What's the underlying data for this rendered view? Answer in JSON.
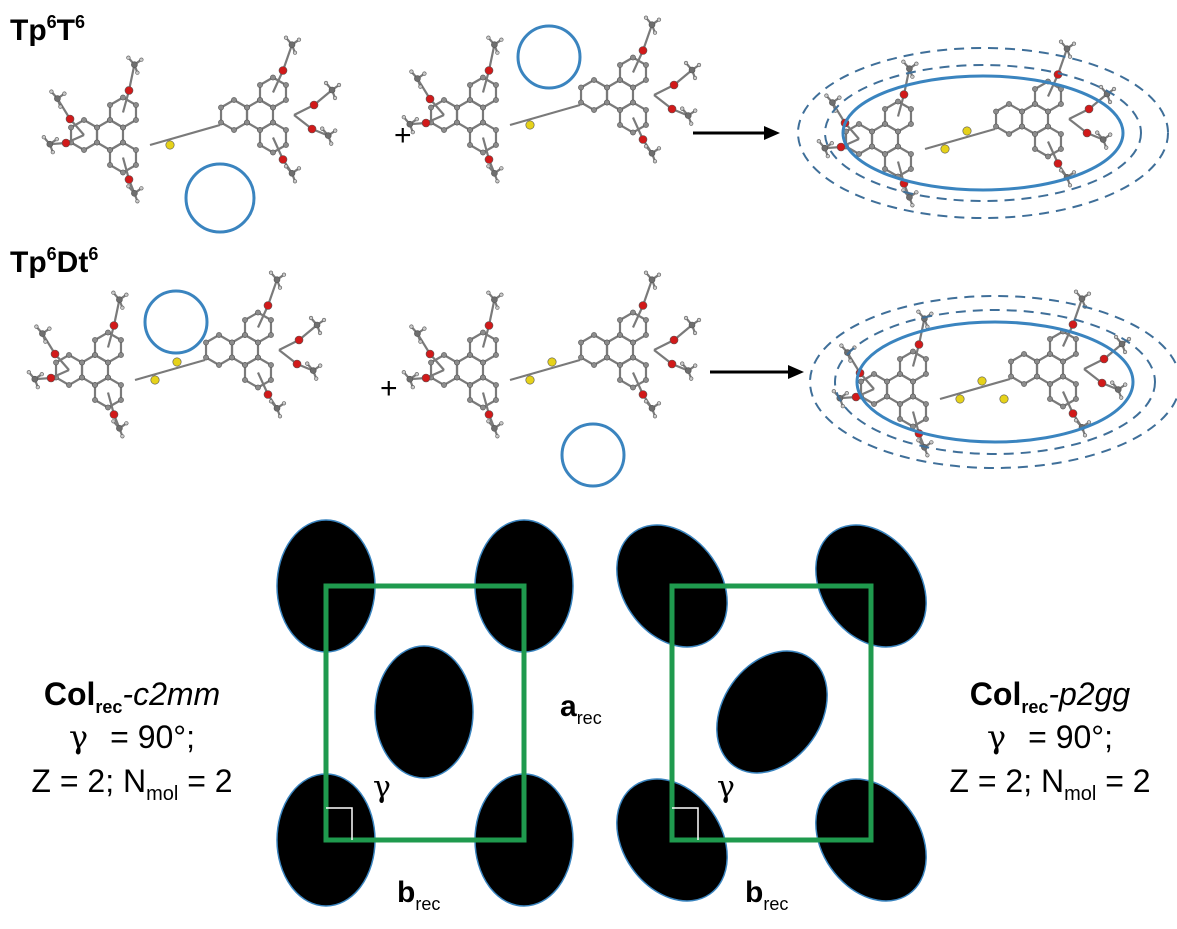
{
  "rows": [
    {
      "label_main": "Tp",
      "label_sup1": "6",
      "label_mid": "T",
      "label_sup2": "6"
    },
    {
      "label_main": "Tp",
      "label_sup1": "6",
      "label_mid": "Dt",
      "label_sup2": "6"
    }
  ],
  "plus": "+",
  "lattices": [
    {
      "name_main": "Col",
      "name_sub": "rec",
      "name_sym": "-c2mm",
      "gamma_symbol": "γ",
      "gamma_value": "= 90°;",
      "z_text": "Z = 2; N",
      "z_sub": "mol",
      "z_end": " = 2",
      "angle_label": "γ",
      "b_main": "b",
      "b_sub": "rec"
    },
    {
      "name_main": "Col",
      "name_sub": "rec",
      "name_sym": "-p2gg",
      "gamma_symbol": "γ",
      "gamma_value": "= 90°;",
      "z_text": "Z = 2; N",
      "z_sub": "mol",
      "z_end": " = 2",
      "angle_label": "γ",
      "b_main": "b",
      "b_sub": "rec"
    }
  ],
  "a_label": {
    "main": "a",
    "sub": "rec"
  },
  "colors": {
    "cell": "#1f9a4e",
    "circle": "#3a84bf",
    "dashed": "#3f6f99",
    "carbon": "#8c8c8c",
    "oxygen": "#d11a1a",
    "sulfur": "#e6d21a",
    "hydrogen": "#c8c8c8",
    "column": "#000000",
    "column_rim": "#3a84bf"
  }
}
